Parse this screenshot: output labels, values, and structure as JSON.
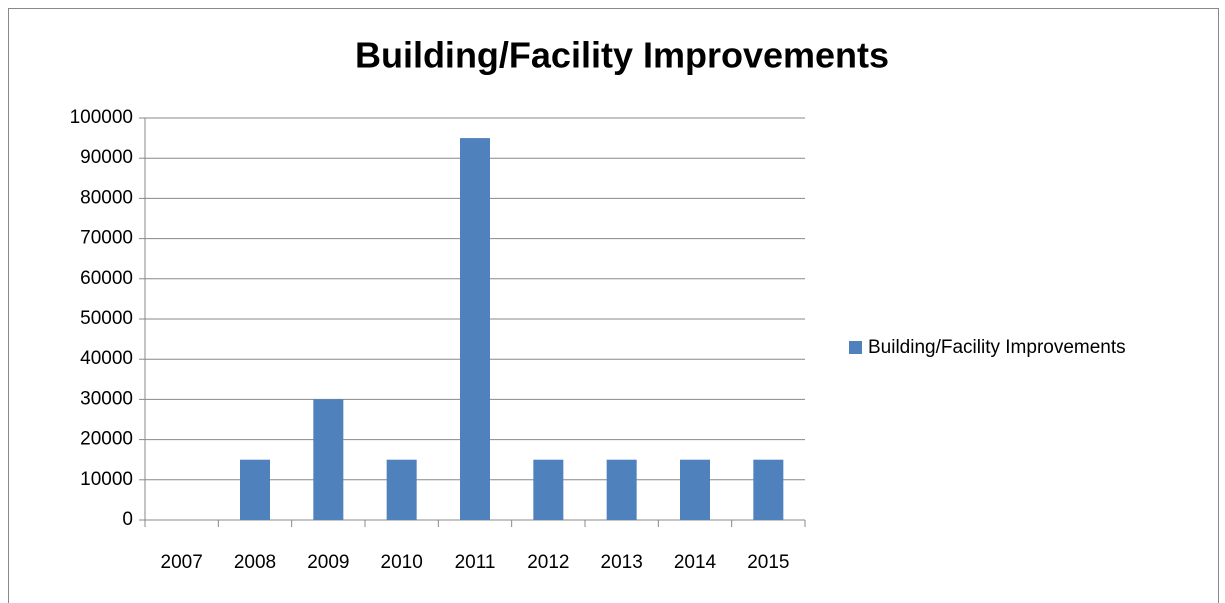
{
  "chart_data": {
    "type": "bar",
    "title": "Building/Facility Improvements",
    "categories": [
      "2007",
      "2008",
      "2009",
      "2010",
      "2011",
      "2012",
      "2013",
      "2014",
      "2015"
    ],
    "series": [
      {
        "name": "Building/Facility Improvements",
        "color": "#4f81bd",
        "values": [
          0,
          15000,
          30000,
          15000,
          95000,
          15000,
          15000,
          15000,
          15000
        ]
      }
    ],
    "ylim": [
      0,
      100000
    ],
    "yticks": [
      0,
      10000,
      20000,
      30000,
      40000,
      50000,
      60000,
      70000,
      80000,
      90000,
      100000
    ],
    "grid": true,
    "legend": "right"
  }
}
